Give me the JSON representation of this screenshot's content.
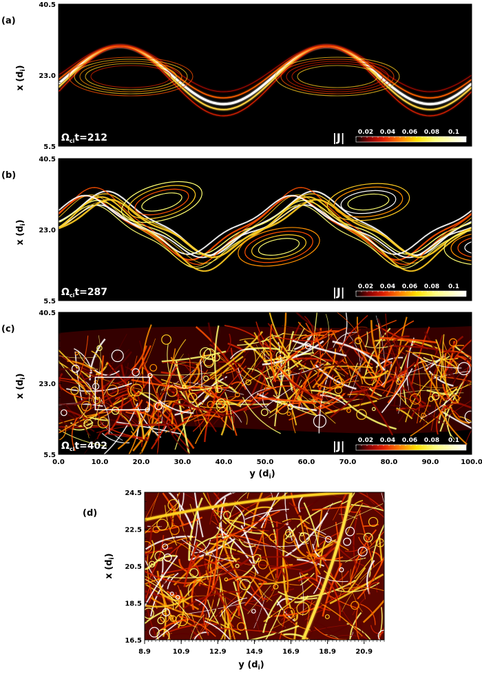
{
  "chart_data": [
    {
      "type": "heatmap",
      "panel_label": "(a)",
      "time_label": "212",
      "colorbar_title": "|J|",
      "colorbar_ticks": [
        "0.02",
        "0.04",
        "0.06",
        "0.08",
        "0.1"
      ],
      "ylabel": "x (di)",
      "yticks": [
        "5.5",
        "23.0",
        "40.5"
      ],
      "xlim": [
        0,
        100
      ],
      "ylim": [
        5.5,
        40.5
      ],
      "structure": "single kelvin-helmholtz current sheet roll-up"
    },
    {
      "type": "heatmap",
      "panel_label": "(b)",
      "time_label": "287",
      "colorbar_title": "|J|",
      "colorbar_ticks": [
        "0.02",
        "0.04",
        "0.06",
        "0.08",
        "0.1"
      ],
      "ylabel": "x (di)",
      "yticks": [
        "5.5",
        "23.0",
        "40.5"
      ],
      "xlim": [
        0,
        100
      ],
      "ylim": [
        5.5,
        40.5
      ],
      "structure": "multiple filamentary current layers"
    },
    {
      "type": "heatmap",
      "panel_label": "(c)",
      "time_label": "402",
      "colorbar_title": "|J|",
      "colorbar_ticks": [
        "0.02",
        "0.04",
        "0.06",
        "0.08",
        "0.1"
      ],
      "ylabel": "x (di)",
      "yticks": [
        "5.5",
        "23.0",
        "40.5"
      ],
      "xlabel": "y (di)",
      "xticks": [
        "0.0",
        "10.0",
        "20.0",
        "30.0",
        "40.0",
        "50.0",
        "60.0",
        "70.0",
        "80.0",
        "90.0",
        "100.0"
      ],
      "xlim": [
        0,
        100
      ],
      "ylim": [
        5.5,
        40.5
      ],
      "zoom_box": {
        "y": [
          8.9,
          22.0
        ],
        "x": [
          16.5,
          24.5
        ]
      },
      "structure": "turbulent current sheets and vortices"
    },
    {
      "type": "heatmap",
      "panel_label": "(d)",
      "ylabel": "x (di)",
      "yticks": [
        "16.5",
        "18.5",
        "20.5",
        "22.5",
        "24.5"
      ],
      "xlabel": "y (di)",
      "xticks": [
        "8.9",
        "10.9",
        "12.9",
        "14.9",
        "16.9",
        "18.9",
        "20.9"
      ],
      "xlim": [
        8.9,
        22.0
      ],
      "ylim": [
        16.5,
        24.5
      ],
      "structure": "zoomed turbulent region"
    }
  ],
  "omega_symbol": "Ω",
  "omega_sub": "ci",
  "time_prefix": "t=",
  "colorscale": [
    "#000000",
    "#4a0000",
    "#a01000",
    "#e03000",
    "#ff7a00",
    "#ffd000",
    "#ffff60",
    "#ffffff"
  ]
}
